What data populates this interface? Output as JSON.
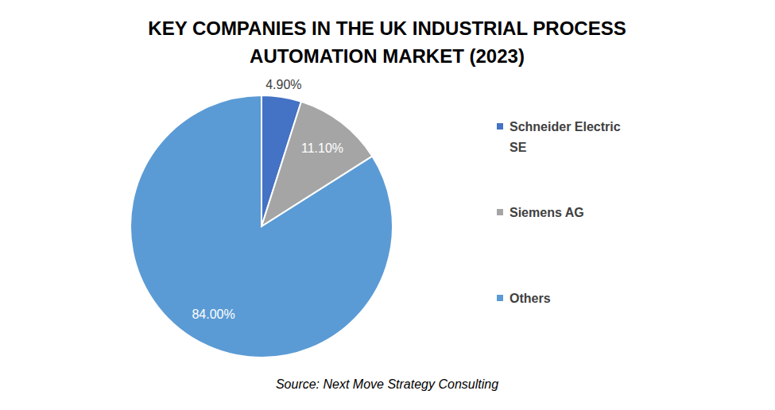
{
  "chart_data": {
    "type": "pie",
    "title": "KEY COMPANIES IN THE UK INDUSTRIAL PROCESS AUTOMATION MARKET (2023)",
    "subtitle": "Source: Next Move Strategy Consulting",
    "categories": [
      "Schneider Electric SE",
      "Siemens AG",
      "Others"
    ],
    "values": [
      4.9,
      11.1,
      84.0
    ],
    "value_labels": [
      "4.90%",
      "11.10%",
      "84.00%"
    ],
    "colors": [
      "#4472c4",
      "#a5a5a5",
      "#5b9bd5"
    ],
    "data_labels": true,
    "legend": "right"
  }
}
